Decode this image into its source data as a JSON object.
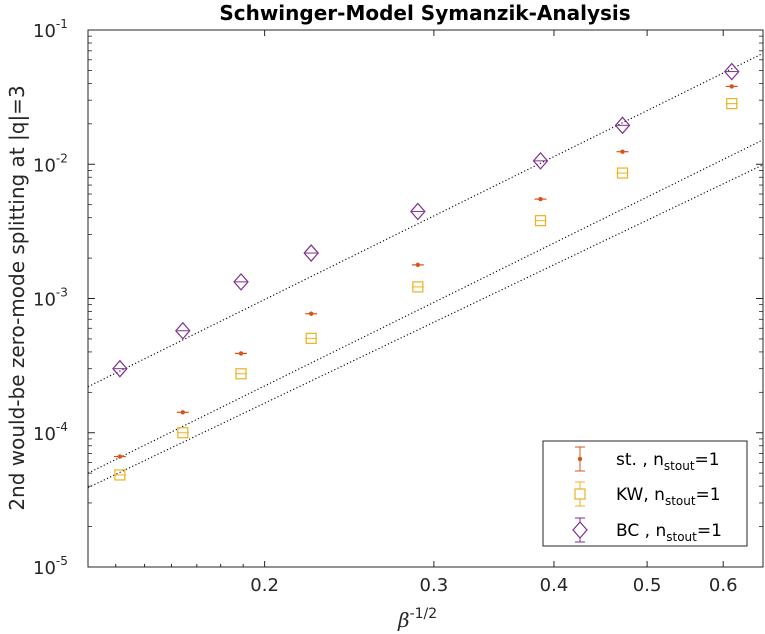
{
  "chart_data": {
    "type": "scatter",
    "title": "Schwinger-Model Symanzik-Analysis",
    "ylabel": "2nd would-be zero-mode splitting at |q|=3",
    "xlabel": {
      "base": "β",
      "superscript": "-1/2"
    },
    "x_scale": "log",
    "y_scale": "log",
    "xlim": [
      0.131,
      0.66
    ],
    "ylim": [
      1e-05,
      0.1
    ],
    "x_ticks": [
      {
        "value": 0.2,
        "label": "0.2"
      },
      {
        "value": 0.3,
        "label": "0.3"
      },
      {
        "value": 0.4,
        "label": "0.4"
      },
      {
        "value": 0.5,
        "label": "0.5"
      },
      {
        "value": 0.6,
        "label": "0.6"
      }
    ],
    "y_ticks": [
      {
        "value": 1e-05,
        "base": "10",
        "exp": "-5"
      },
      {
        "value": 0.0001,
        "base": "10",
        "exp": "-4"
      },
      {
        "value": 0.001,
        "base": "10",
        "exp": "-3"
      },
      {
        "value": 0.01,
        "base": "10",
        "exp": "-2"
      },
      {
        "value": 0.1,
        "base": "10",
        "exp": "-1"
      }
    ],
    "grid": false,
    "legend_position": "bottom-right",
    "x": [
      0.1414,
      0.1644,
      0.189,
      0.2236,
      0.2887,
      0.3873,
      0.4714,
      0.6124
    ],
    "series": [
      {
        "name": "st. , n",
        "name_sub": "stout",
        "name_suffix": "=1",
        "marker": "dot",
        "color": "#D95319",
        "values": [
          6.65e-05,
          0.000142,
          0.00039,
          0.00077,
          0.00178,
          0.0055,
          0.0124,
          0.038
        ]
      },
      {
        "name": "KW, n",
        "name_sub": "stout",
        "name_suffix": "=1",
        "marker": "square",
        "color": "#EDB120",
        "values": [
          4.85e-05,
          0.0001,
          0.000275,
          0.000505,
          0.00122,
          0.0038,
          0.0086,
          0.0283
        ]
      },
      {
        "name": "BC , n",
        "name_sub": "stout",
        "name_suffix": "=1",
        "marker": "diamond",
        "color": "#7E2F8E",
        "values": [
          0.0003,
          0.000575,
          0.00133,
          0.00218,
          0.00445,
          0.0106,
          0.0195,
          0.049
        ]
      }
    ],
    "fit_lines": [
      {
        "points": [
          [
            0.131,
            0.00022
          ],
          [
            0.66,
            0.067
          ]
        ],
        "style": "dotted",
        "color": "#000000"
      },
      {
        "points": [
          [
            0.131,
            5e-05
          ],
          [
            0.66,
            0.0152
          ]
        ],
        "style": "dotted",
        "color": "#000000"
      },
      {
        "points": [
          [
            0.131,
            3.9e-05
          ],
          [
            0.66,
            0.0099
          ]
        ],
        "style": "dotted",
        "color": "#000000"
      }
    ]
  }
}
